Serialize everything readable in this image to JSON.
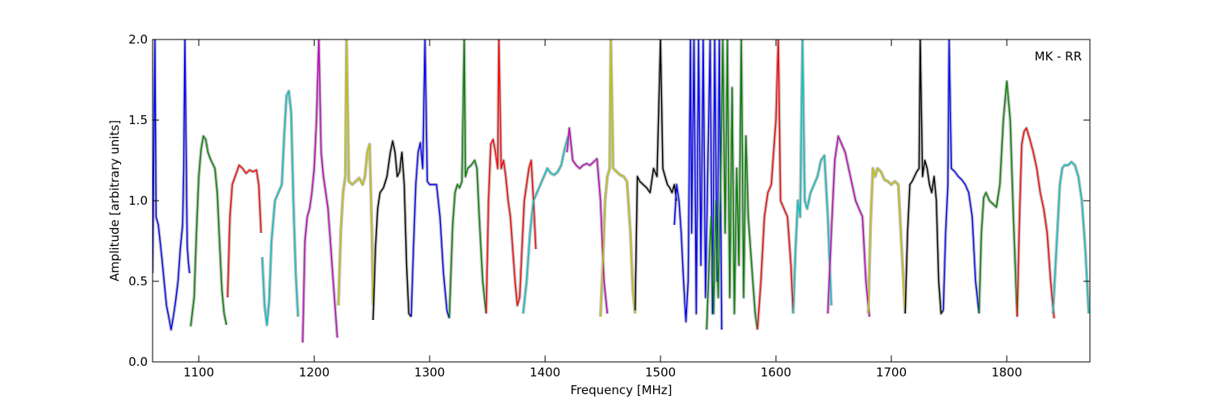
{
  "chart_data": {
    "type": "line",
    "annotation": "MK - RR",
    "xlabel": "Frequency [MHz]",
    "ylabel": "Amplitude [arbitrary units]",
    "xlim": [
      1060,
      1872
    ],
    "ylim": [
      0.0,
      2.0
    ],
    "xticks": [
      1100,
      1200,
      1300,
      1400,
      1500,
      1600,
      1700,
      1800
    ],
    "xtick_labels": [
      "1100",
      "1200",
      "1300",
      "1400",
      "1500",
      "1600",
      "1700",
      "1800"
    ],
    "yticks": [
      0.0,
      0.5,
      1.0,
      1.5,
      2.0
    ],
    "ytick_labels": [
      "0.0",
      "0.5",
      "1.0",
      "1.5",
      "2.0"
    ],
    "grid": false,
    "background_color": "#c0c0c0",
    "series": [
      {
        "color": "#0000ff",
        "x": [
          1060,
          1062,
          1063,
          1065,
          1068,
          1070,
          1072,
          1074,
          1076,
          1078,
          1080,
          1082,
          1084,
          1086,
          1087,
          1088,
          1090,
          1091,
          1092
        ],
        "y": [
          0.55,
          2.0,
          0.9,
          0.85,
          0.65,
          0.5,
          0.35,
          0.28,
          0.2,
          0.28,
          0.38,
          0.5,
          0.7,
          0.85,
          1.2,
          2.0,
          0.72,
          0.62,
          0.55
        ]
      },
      {
        "color": "#008000",
        "x": [
          1093,
          1096,
          1098,
          1100,
          1102,
          1104,
          1106,
          1108,
          1110,
          1112,
          1114,
          1116,
          1118,
          1120,
          1122,
          1124
        ],
        "y": [
          0.22,
          0.4,
          0.8,
          1.15,
          1.32,
          1.4,
          1.38,
          1.3,
          1.26,
          1.23,
          1.2,
          1.05,
          0.75,
          0.45,
          0.3,
          0.23
        ]
      },
      {
        "color": "#ff0000",
        "x": [
          1125,
          1127,
          1129,
          1131,
          1133,
          1135,
          1138,
          1141,
          1144,
          1147,
          1150,
          1152,
          1154
        ],
        "y": [
          0.4,
          0.9,
          1.1,
          1.14,
          1.18,
          1.22,
          1.2,
          1.17,
          1.19,
          1.18,
          1.19,
          1.1,
          0.8
        ]
      },
      {
        "color": "#00bfbf",
        "x": [
          1155,
          1157,
          1159,
          1161,
          1163,
          1166,
          1169,
          1172,
          1174,
          1176,
          1178,
          1180,
          1182,
          1184,
          1186
        ],
        "y": [
          0.65,
          0.35,
          0.23,
          0.38,
          0.75,
          1.0,
          1.05,
          1.1,
          1.4,
          1.65,
          1.68,
          1.55,
          1.0,
          0.55,
          0.28
        ]
      },
      {
        "color": "#bf00bf",
        "x": [
          1190,
          1192,
          1194,
          1196,
          1198,
          1200,
          1202,
          1204,
          1206,
          1208,
          1210,
          1212,
          1214,
          1216,
          1218,
          1220
        ],
        "y": [
          0.12,
          0.75,
          0.9,
          0.95,
          1.05,
          1.2,
          1.5,
          2.0,
          1.3,
          1.15,
          1.05,
          0.95,
          0.75,
          0.55,
          0.35,
          0.15
        ]
      },
      {
        "color": "#bfbf00",
        "x": [
          1221,
          1223,
          1225,
          1227,
          1228,
          1230,
          1233,
          1236,
          1239,
          1242,
          1244,
          1246,
          1248,
          1250,
          1251
        ],
        "y": [
          0.35,
          0.8,
          1.05,
          1.15,
          2.0,
          1.12,
          1.1,
          1.12,
          1.14,
          1.1,
          1.15,
          1.3,
          1.35,
          0.8,
          0.35
        ]
      },
      {
        "color": "#000000",
        "x": [
          1251,
          1253,
          1255,
          1257,
          1260,
          1263,
          1266,
          1268,
          1270,
          1272,
          1274,
          1276,
          1278,
          1280,
          1282,
          1284
        ],
        "y": [
          0.26,
          0.7,
          0.95,
          1.05,
          1.08,
          1.15,
          1.3,
          1.37,
          1.3,
          1.15,
          1.18,
          1.3,
          1.1,
          0.6,
          0.3,
          0.28
        ]
      },
      {
        "color": "#0000ff",
        "x": [
          1284,
          1286,
          1288,
          1290,
          1292,
          1294,
          1296,
          1298,
          1300,
          1303,
          1306,
          1309,
          1312,
          1315,
          1317
        ],
        "y": [
          0.28,
          0.7,
          1.1,
          1.3,
          1.36,
          1.2,
          2.0,
          1.12,
          1.1,
          1.1,
          1.1,
          0.9,
          0.55,
          0.32,
          0.27
        ]
      },
      {
        "color": "#008000",
        "x": [
          1317,
          1320,
          1322,
          1324,
          1326,
          1328,
          1330,
          1331,
          1333,
          1336,
          1339,
          1341,
          1343,
          1346,
          1349
        ],
        "y": [
          0.27,
          0.85,
          1.05,
          1.1,
          1.08,
          1.12,
          2.0,
          1.15,
          1.2,
          1.22,
          1.25,
          1.2,
          0.9,
          0.5,
          0.3
        ]
      },
      {
        "color": "#ff0000",
        "x": [
          1349,
          1351,
          1353,
          1355,
          1357,
          1359,
          1360,
          1362,
          1364,
          1366,
          1368,
          1370,
          1372,
          1374,
          1376,
          1378,
          1380,
          1382,
          1384,
          1386,
          1388,
          1390,
          1392
        ],
        "y": [
          0.3,
          1.0,
          1.35,
          1.38,
          1.3,
          1.2,
          2.0,
          1.2,
          1.25,
          1.15,
          1.0,
          0.9,
          0.7,
          0.5,
          0.35,
          0.4,
          0.7,
          1.0,
          1.1,
          1.2,
          1.25,
          1.0,
          0.7
        ]
      },
      {
        "color": "#00bfbf",
        "x": [
          1381,
          1384,
          1387,
          1390,
          1393,
          1396,
          1399,
          1402,
          1405,
          1408,
          1411,
          1414,
          1417,
          1420
        ],
        "y": [
          0.3,
          0.5,
          0.8,
          1.0,
          1.05,
          1.1,
          1.15,
          1.2,
          1.17,
          1.16,
          1.18,
          1.22,
          1.32,
          1.4
        ]
      },
      {
        "color": "#bf00bf",
        "x": [
          1419,
          1421,
          1424,
          1427,
          1430,
          1433,
          1436,
          1439,
          1442,
          1445,
          1448,
          1451,
          1454
        ],
        "y": [
          1.3,
          1.45,
          1.25,
          1.22,
          1.2,
          1.22,
          1.23,
          1.22,
          1.24,
          1.26,
          1.0,
          0.5,
          0.3
        ]
      },
      {
        "color": "#bfbf00",
        "x": [
          1448,
          1450,
          1452,
          1454,
          1456,
          1457,
          1459,
          1462,
          1465,
          1468,
          1471,
          1474,
          1476,
          1478
        ],
        "y": [
          0.28,
          0.6,
          1.0,
          1.15,
          1.2,
          2.0,
          1.2,
          1.18,
          1.16,
          1.15,
          1.12,
          0.8,
          0.45,
          0.3
        ]
      },
      {
        "color": "#000000",
        "x": [
          1478,
          1480,
          1482,
          1485,
          1488,
          1491,
          1494,
          1497,
          1500,
          1502,
          1504,
          1506,
          1508,
          1510,
          1512,
          1514
        ],
        "y": [
          0.32,
          1.15,
          1.12,
          1.1,
          1.08,
          1.05,
          1.2,
          1.15,
          2.0,
          1.2,
          1.15,
          1.1,
          1.08,
          1.05,
          1.1,
          1.0
        ]
      },
      {
        "color": "#0000ff",
        "x": [
          1512,
          1514,
          1516,
          1518,
          1520,
          1522,
          1524,
          1526,
          1527,
          1529,
          1531,
          1533,
          1535,
          1537,
          1539,
          1541,
          1543,
          1545,
          1547,
          1549,
          1551,
          1553
        ],
        "y": [
          0.85,
          1.1,
          1.0,
          0.8,
          0.5,
          0.25,
          0.5,
          2.0,
          0.8,
          2.0,
          0.3,
          2.0,
          0.6,
          2.0,
          0.4,
          1.2,
          2.0,
          0.3,
          2.0,
          0.5,
          2.0,
          0.2
        ]
      },
      {
        "color": "#008000",
        "x": [
          1540,
          1542,
          1544,
          1546,
          1548,
          1550,
          1552,
          1554,
          1556,
          1558,
          1560,
          1562,
          1564,
          1566,
          1568,
          1570,
          1572,
          1574,
          1576,
          1578,
          1580,
          1582,
          1584
        ],
        "y": [
          0.2,
          0.6,
          0.9,
          0.3,
          1.0,
          0.4,
          1.1,
          2.0,
          0.8,
          2.0,
          0.4,
          1.7,
          0.3,
          1.2,
          0.6,
          2.0,
          0.4,
          1.4,
          0.9,
          0.7,
          0.5,
          0.3,
          0.2
        ]
      },
      {
        "color": "#ff0000",
        "x": [
          1584,
          1587,
          1590,
          1593,
          1596,
          1598,
          1600,
          1602,
          1604,
          1607,
          1610,
          1613,
          1615
        ],
        "y": [
          0.2,
          0.5,
          0.9,
          1.05,
          1.1,
          1.3,
          1.5,
          2.0,
          1.0,
          0.95,
          0.9,
          0.6,
          0.3
        ]
      },
      {
        "color": "#00bfbf",
        "x": [
          1615,
          1617,
          1619,
          1621,
          1623,
          1625,
          1627,
          1630,
          1633,
          1636,
          1639,
          1642,
          1645,
          1648
        ],
        "y": [
          0.3,
          0.7,
          1.0,
          0.9,
          2.0,
          1.0,
          0.95,
          1.05,
          1.1,
          1.15,
          1.25,
          1.28,
          0.9,
          0.35
        ]
      },
      {
        "color": "#bf00bf",
        "x": [
          1645,
          1648,
          1651,
          1654,
          1657,
          1660,
          1663,
          1666,
          1669,
          1672,
          1675,
          1678,
          1681
        ],
        "y": [
          0.3,
          0.8,
          1.25,
          1.4,
          1.35,
          1.3,
          1.2,
          1.1,
          1.0,
          0.95,
          0.9,
          0.5,
          0.28
        ]
      },
      {
        "color": "#bfbf00",
        "x": [
          1680,
          1682,
          1684,
          1686,
          1688,
          1691,
          1694,
          1697,
          1700,
          1703,
          1706,
          1709,
          1712
        ],
        "y": [
          0.3,
          0.85,
          1.2,
          1.15,
          1.2,
          1.18,
          1.13,
          1.12,
          1.1,
          1.12,
          1.1,
          0.7,
          0.3
        ]
      },
      {
        "color": "#000000",
        "x": [
          1712,
          1714,
          1716,
          1718,
          1720,
          1722,
          1724,
          1725,
          1727,
          1729,
          1731,
          1733,
          1735,
          1737,
          1739,
          1741,
          1743,
          1745
        ],
        "y": [
          0.3,
          0.8,
          1.1,
          1.12,
          1.15,
          1.18,
          1.2,
          2.0,
          1.15,
          1.25,
          1.2,
          1.1,
          1.05,
          1.15,
          1.0,
          0.5,
          0.3,
          0.32
        ]
      },
      {
        "color": "#0000ff",
        "x": [
          1745,
          1747,
          1749,
          1750,
          1752,
          1755,
          1758,
          1761,
          1764,
          1767,
          1770,
          1773,
          1776
        ],
        "y": [
          0.32,
          0.8,
          1.1,
          2.0,
          1.2,
          1.18,
          1.15,
          1.13,
          1.1,
          1.05,
          0.9,
          0.5,
          0.3
        ]
      },
      {
        "color": "#008000",
        "x": [
          1776,
          1778,
          1780,
          1782,
          1785,
          1788,
          1791,
          1794,
          1797,
          1800,
          1803,
          1806,
          1809
        ],
        "y": [
          0.3,
          0.8,
          1.02,
          1.05,
          1.0,
          0.98,
          0.96,
          1.1,
          1.5,
          1.74,
          1.5,
          0.85,
          0.28
        ]
      },
      {
        "color": "#ff0000",
        "x": [
          1809,
          1811,
          1813,
          1815,
          1817,
          1820,
          1823,
          1826,
          1829,
          1832,
          1835,
          1838,
          1841
        ],
        "y": [
          0.28,
          0.9,
          1.35,
          1.43,
          1.45,
          1.38,
          1.3,
          1.2,
          1.05,
          0.95,
          0.8,
          0.5,
          0.27
        ]
      },
      {
        "color": "#00bfbf",
        "x": [
          1840,
          1843,
          1846,
          1848,
          1850,
          1853,
          1856,
          1859,
          1862,
          1865,
          1868,
          1871
        ],
        "y": [
          0.3,
          0.7,
          1.1,
          1.2,
          1.22,
          1.22,
          1.24,
          1.22,
          1.15,
          1.0,
          0.7,
          0.3
        ]
      }
    ]
  }
}
